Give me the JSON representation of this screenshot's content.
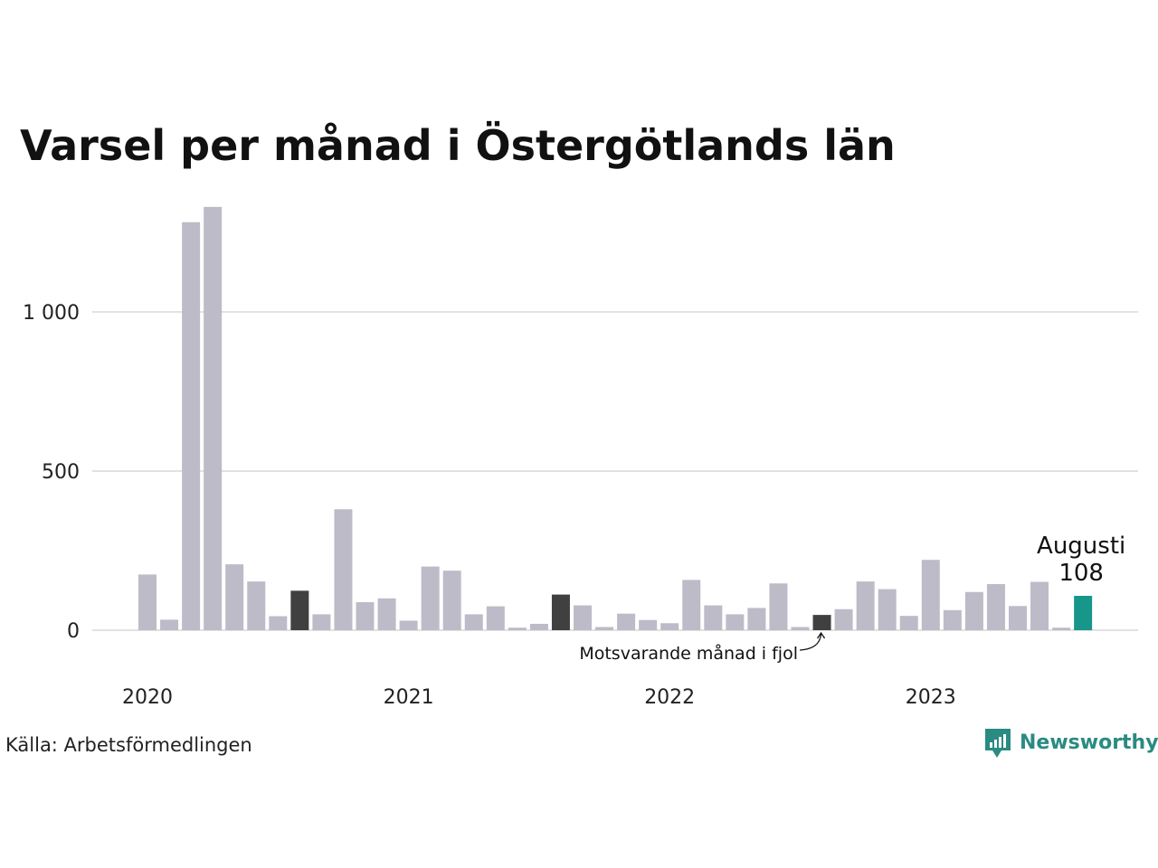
{
  "chart_data": {
    "type": "bar",
    "title": "Varsel per månad i Östergötlands län",
    "xlabel": "",
    "ylabel": "",
    "ylim": [
      0,
      1340
    ],
    "yticks": [
      {
        "value": 0,
        "label": "0"
      },
      {
        "value": 500,
        "label": "500"
      },
      {
        "value": 1000,
        "label": "1 000"
      }
    ],
    "xticks": [
      {
        "index": 0,
        "label": "2020"
      },
      {
        "index": 12,
        "label": "2021"
      },
      {
        "index": 24,
        "label": "2022"
      },
      {
        "index": 36,
        "label": "2023"
      }
    ],
    "categories": [
      "2020-01",
      "2020-02",
      "2020-03",
      "2020-04",
      "2020-05",
      "2020-06",
      "2020-07",
      "2020-08",
      "2020-09",
      "2020-10",
      "2020-11",
      "2020-12",
      "2021-01",
      "2021-02",
      "2021-03",
      "2021-04",
      "2021-05",
      "2021-06",
      "2021-07",
      "2021-08",
      "2021-09",
      "2021-10",
      "2021-11",
      "2021-12",
      "2022-01",
      "2022-02",
      "2022-03",
      "2022-04",
      "2022-05",
      "2022-06",
      "2022-07",
      "2022-08",
      "2022-09",
      "2022-10",
      "2022-11",
      "2022-12",
      "2023-01",
      "2023-02",
      "2023-03",
      "2023-04",
      "2023-05",
      "2023-06",
      "2023-07",
      "2023-08"
    ],
    "values": [
      175,
      33,
      1282,
      1330,
      207,
      153,
      44,
      124,
      50,
      380,
      88,
      100,
      30,
      200,
      187,
      50,
      75,
      8,
      20,
      112,
      78,
      10,
      52,
      32,
      22,
      158,
      78,
      50,
      70,
      147,
      10,
      48,
      66,
      153,
      129,
      45,
      221,
      63,
      120,
      145,
      76,
      152,
      8,
      108
    ],
    "highlight_same_month_indices": [
      7,
      19,
      31
    ],
    "current_index": 43,
    "colors": {
      "default": "#bdbbc8",
      "same_month": "#404040",
      "current": "#17968a",
      "gridline": "#e2e2e2",
      "brand": "#2a8b82"
    },
    "annotations": {
      "current_month_label": "Augusti",
      "current_value_label": "108",
      "same_month_label": "Motsvarande månad i fjol"
    },
    "grid": true,
    "legend": "none"
  },
  "footer": {
    "source": "Källa: Arbetsförmedlingen",
    "brand": "Newsworthy"
  }
}
